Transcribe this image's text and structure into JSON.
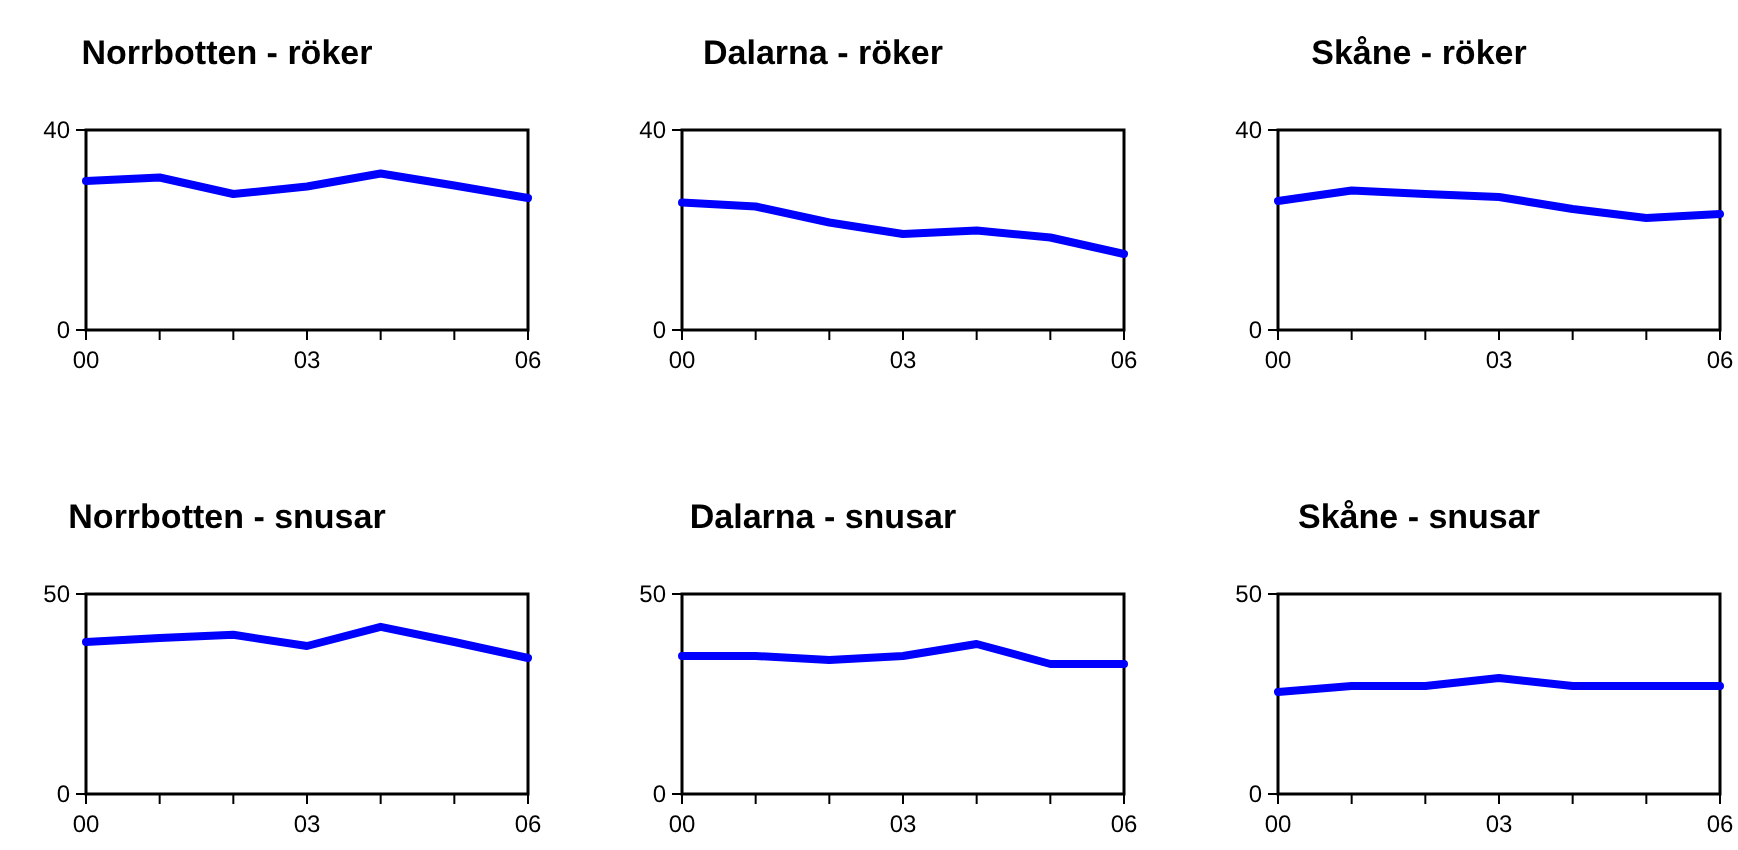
{
  "chart_data": [
    {
      "type": "line",
      "title": "Norrbotten - röker",
      "x": [
        0,
        1,
        2,
        3,
        4,
        5,
        6
      ],
      "xlim": [
        0,
        6
      ],
      "xticks": [
        {
          "value": 0,
          "label": "00"
        },
        {
          "value": 1,
          "label": null
        },
        {
          "value": 2,
          "label": null
        },
        {
          "value": 3,
          "label": "03"
        },
        {
          "value": 4,
          "label": null
        },
        {
          "value": 5,
          "label": null
        },
        {
          "value": 6,
          "label": "06"
        }
      ],
      "ylim": [
        0,
        40
      ],
      "yticks": [
        0,
        40
      ],
      "series": [
        {
          "color": "#0000ff",
          "values": [
            29.8,
            30.5,
            27.2,
            28.7,
            31.3,
            28.9,
            26.4
          ]
        }
      ]
    },
    {
      "type": "line",
      "title": "Dalarna - röker",
      "x": [
        0,
        1,
        2,
        3,
        4,
        5,
        6
      ],
      "xlim": [
        0,
        6
      ],
      "xticks": [
        {
          "value": 0,
          "label": "00"
        },
        {
          "value": 1,
          "label": null
        },
        {
          "value": 2,
          "label": null
        },
        {
          "value": 3,
          "label": "03"
        },
        {
          "value": 4,
          "label": null
        },
        {
          "value": 5,
          "label": null
        },
        {
          "value": 6,
          "label": "06"
        }
      ],
      "ylim": [
        0,
        40
      ],
      "yticks": [
        0,
        40
      ],
      "series": [
        {
          "color": "#0000ff",
          "values": [
            25.5,
            24.7,
            21.5,
            19.2,
            19.9,
            18.5,
            15.2
          ]
        }
      ]
    },
    {
      "type": "line",
      "title": "Skåne - röker",
      "x": [
        0,
        1,
        2,
        3,
        4,
        5,
        6
      ],
      "xlim": [
        0,
        6
      ],
      "xticks": [
        {
          "value": 0,
          "label": "00"
        },
        {
          "value": 1,
          "label": null
        },
        {
          "value": 2,
          "label": null
        },
        {
          "value": 3,
          "label": "03"
        },
        {
          "value": 4,
          "label": null
        },
        {
          "value": 5,
          "label": null
        },
        {
          "value": 6,
          "label": "06"
        }
      ],
      "ylim": [
        0,
        40
      ],
      "yticks": [
        0,
        40
      ],
      "series": [
        {
          "color": "#0000ff",
          "values": [
            25.8,
            27.9,
            27.2,
            26.6,
            24.2,
            22.4,
            23.2
          ]
        }
      ]
    },
    {
      "type": "line",
      "title": "Norrbotten - snusar",
      "x": [
        0,
        1,
        2,
        3,
        4,
        5,
        6
      ],
      "xlim": [
        0,
        6
      ],
      "xticks": [
        {
          "value": 0,
          "label": "00"
        },
        {
          "value": 1,
          "label": null
        },
        {
          "value": 2,
          "label": null
        },
        {
          "value": 3,
          "label": "03"
        },
        {
          "value": 4,
          "label": null
        },
        {
          "value": 5,
          "label": null
        },
        {
          "value": 6,
          "label": "06"
        }
      ],
      "ylim": [
        0,
        50
      ],
      "yticks": [
        0,
        50
      ],
      "series": [
        {
          "color": "#0000ff",
          "values": [
            38,
            39,
            39.8,
            37,
            41.8,
            38,
            34
          ]
        }
      ]
    },
    {
      "type": "line",
      "title": "Dalarna - snusar",
      "x": [
        0,
        1,
        2,
        3,
        4,
        5,
        6
      ],
      "xlim": [
        0,
        6
      ],
      "xticks": [
        {
          "value": 0,
          "label": "00"
        },
        {
          "value": 1,
          "label": null
        },
        {
          "value": 2,
          "label": null
        },
        {
          "value": 3,
          "label": "03"
        },
        {
          "value": 4,
          "label": null
        },
        {
          "value": 5,
          "label": null
        },
        {
          "value": 6,
          "label": "06"
        }
      ],
      "ylim": [
        0,
        50
      ],
      "yticks": [
        0,
        50
      ],
      "series": [
        {
          "color": "#0000ff",
          "values": [
            34.5,
            34.5,
            33.5,
            34.5,
            37.5,
            32.5,
            32.5
          ]
        }
      ]
    },
    {
      "type": "line",
      "title": "Skåne - snusar",
      "x": [
        0,
        1,
        2,
        3,
        4,
        5,
        6
      ],
      "xlim": [
        0,
        6
      ],
      "xticks": [
        {
          "value": 0,
          "label": "00"
        },
        {
          "value": 1,
          "label": null
        },
        {
          "value": 2,
          "label": null
        },
        {
          "value": 3,
          "label": "03"
        },
        {
          "value": 4,
          "label": null
        },
        {
          "value": 5,
          "label": null
        },
        {
          "value": 6,
          "label": "06"
        }
      ],
      "ylim": [
        0,
        50
      ],
      "yticks": [
        0,
        50
      ],
      "series": [
        {
          "color": "#0000ff",
          "values": [
            25.5,
            27,
            27,
            29,
            27,
            27,
            27
          ]
        }
      ]
    }
  ]
}
